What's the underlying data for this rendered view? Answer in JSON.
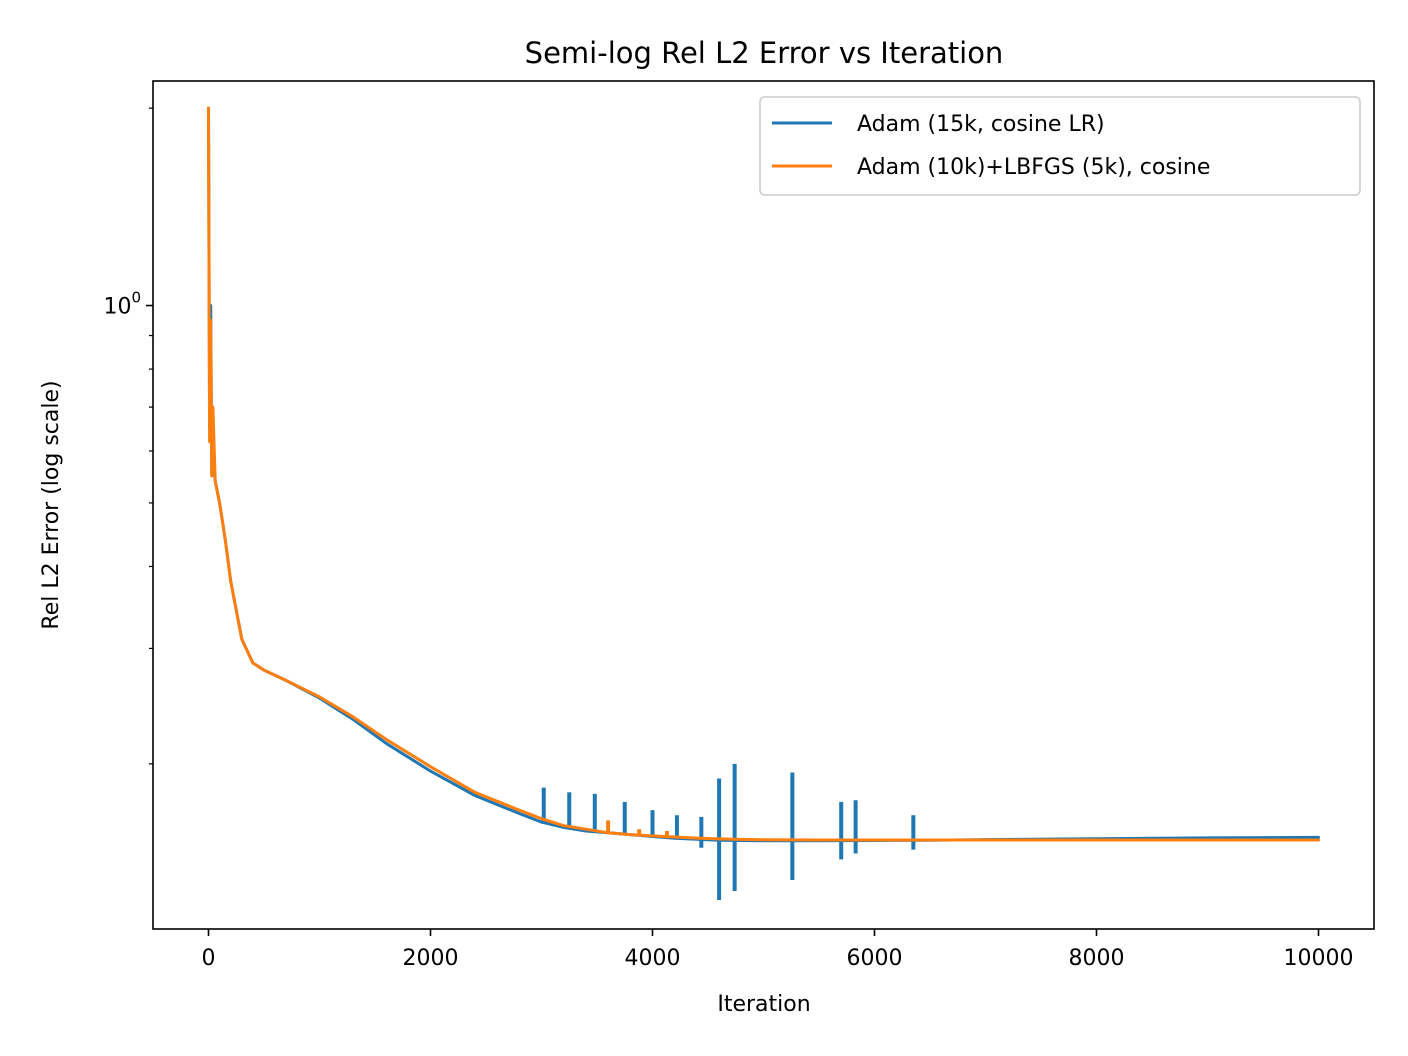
{
  "chart_data": {
    "type": "line",
    "title": "Semi-log Rel L2 Error vs Iteration",
    "xlabel": "Iteration",
    "ylabel": "Rel L2 Error (log scale)",
    "xlim": [
      -500,
      10500
    ],
    "ylim": [
      0.112,
      2.2
    ],
    "yscale": "log",
    "grid": false,
    "legend_position": "top-right",
    "x_ticks": [
      {
        "value": 0,
        "label": "0"
      },
      {
        "value": 2000,
        "label": "2000"
      },
      {
        "value": 4000,
        "label": "4000"
      },
      {
        "value": 6000,
        "label": "6000"
      },
      {
        "value": 8000,
        "label": "8000"
      },
      {
        "value": 10000,
        "label": "10000"
      }
    ],
    "y_ticks": [
      {
        "value": 1.0,
        "label_base": "10",
        "label_exp": "0"
      }
    ],
    "y_minor_ticks": [
      0.2,
      0.3,
      0.4,
      0.5,
      0.6,
      0.7,
      0.8,
      0.9,
      2.0
    ],
    "series": [
      {
        "name": "Adam (15k, cosine LR)",
        "color": "#1f77b4",
        "x": [
          0,
          10,
          20,
          30,
          40,
          60,
          100,
          150,
          200,
          300,
          400,
          500,
          700,
          1000,
          1300,
          1600,
          2000,
          2400,
          2800,
          3000,
          3200,
          3400,
          3600,
          3800,
          4000,
          4200,
          4400,
          4600,
          4800,
          5000,
          5500,
          6000,
          6500,
          7000,
          8000,
          9000,
          10000
        ],
        "y": [
          2.0,
          0.65,
          1.0,
          0.55,
          0.6,
          0.54,
          0.5,
          0.44,
          0.38,
          0.31,
          0.285,
          0.278,
          0.268,
          0.252,
          0.234,
          0.215,
          0.195,
          0.179,
          0.168,
          0.163,
          0.16,
          0.158,
          0.157,
          0.156,
          0.155,
          0.154,
          0.1535,
          0.153,
          0.1528,
          0.1527,
          0.1527,
          0.1528,
          0.153,
          0.1533,
          0.1538,
          0.1542,
          0.1545
        ],
        "spikes": [
          {
            "x": 3020,
            "high": 0.184,
            "low": 0.162
          },
          {
            "x": 3250,
            "high": 0.181,
            "low": 0.16
          },
          {
            "x": 3480,
            "high": 0.18,
            "low": 0.158
          },
          {
            "x": 3750,
            "high": 0.175,
            "low": 0.157
          },
          {
            "x": 4000,
            "high": 0.17,
            "low": 0.155
          },
          {
            "x": 4220,
            "high": 0.167,
            "low": 0.1535
          },
          {
            "x": 4440,
            "high": 0.166,
            "low": 0.149
          },
          {
            "x": 4600,
            "high": 0.19,
            "low": 0.124
          },
          {
            "x": 4740,
            "high": 0.2,
            "low": 0.128
          },
          {
            "x": 5260,
            "high": 0.194,
            "low": 0.133
          },
          {
            "x": 5700,
            "high": 0.175,
            "low": 0.143
          },
          {
            "x": 5830,
            "high": 0.176,
            "low": 0.146
          },
          {
            "x": 6350,
            "high": 0.167,
            "low": 0.148
          }
        ]
      },
      {
        "name": "Adam (10k)+LBFGS (5k), cosine",
        "color": "#ff7f0e",
        "x": [
          0,
          10,
          20,
          30,
          40,
          60,
          100,
          150,
          200,
          300,
          400,
          500,
          700,
          1000,
          1300,
          1600,
          2000,
          2400,
          2800,
          3000,
          3200,
          3400,
          3600,
          3800,
          4000,
          4200,
          4400,
          4600,
          4800,
          5000,
          5500,
          6000,
          6500,
          7000,
          8000,
          9000,
          10000
        ],
        "y": [
          2.0,
          0.62,
          0.95,
          0.55,
          0.7,
          0.54,
          0.5,
          0.44,
          0.38,
          0.31,
          0.285,
          0.278,
          0.268,
          0.253,
          0.236,
          0.218,
          0.198,
          0.181,
          0.17,
          0.165,
          0.161,
          0.159,
          0.157,
          0.156,
          0.1553,
          0.1547,
          0.1541,
          0.1537,
          0.1534,
          0.1532,
          0.1531,
          0.1531,
          0.1531,
          0.1531,
          0.1531,
          0.1531,
          0.1531
        ],
        "spikes": [
          {
            "x": 3600,
            "high": 0.164,
            "low": 0.157
          },
          {
            "x": 3880,
            "high": 0.159,
            "low": 0.155
          },
          {
            "x": 4130,
            "high": 0.158,
            "low": 0.154
          }
        ]
      }
    ]
  }
}
